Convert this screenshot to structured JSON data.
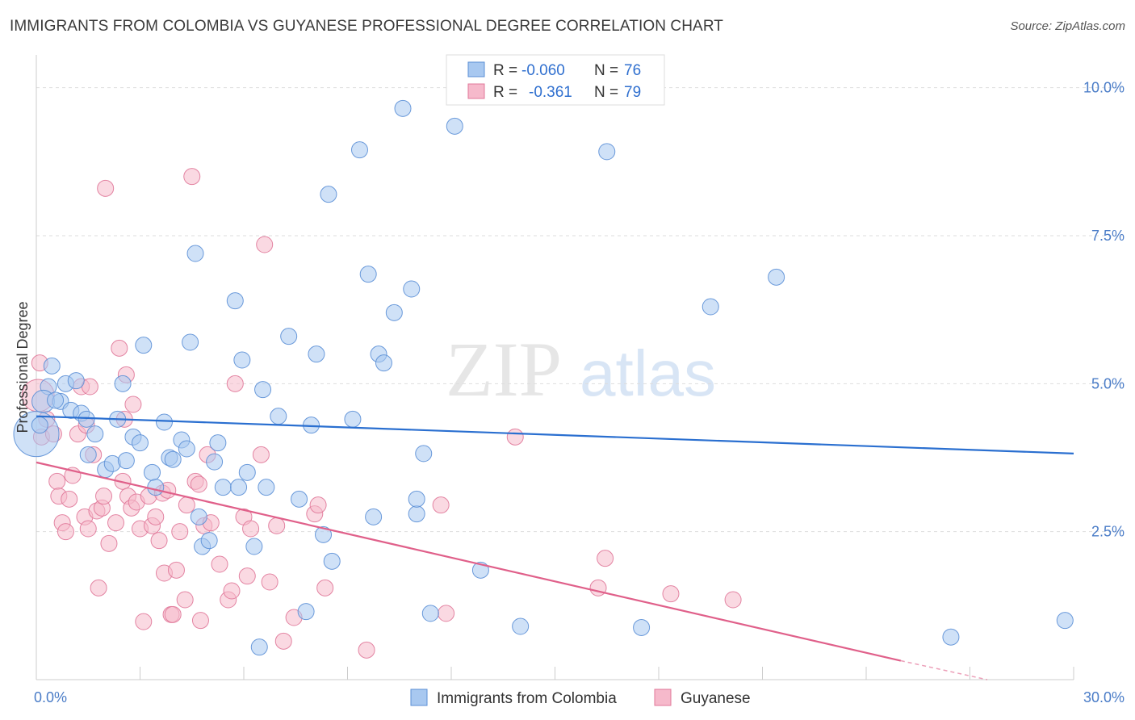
{
  "title": "IMMIGRANTS FROM COLOMBIA VS GUYANESE PROFESSIONAL DEGREE CORRELATION CHART",
  "source": "Source: ZipAtlas.com",
  "watermark": {
    "zip": "ZIP",
    "atlas": "atlas"
  },
  "colors": {
    "blue_fill": "#a8c8f0",
    "blue_stroke": "#5b8fd6",
    "blue_line": "#2a6fd0",
    "pink_fill": "#f6b9cb",
    "pink_stroke": "#e07899",
    "pink_line": "#e0608a",
    "tick_text": "#4a7cc7",
    "grid": "#dddddd"
  },
  "legend_top": {
    "row1": {
      "r_label": "R = ",
      "r_value": "-0.060",
      "n_label": "N = ",
      "n_value": "76"
    },
    "row2": {
      "r_label": "R = ",
      "r_value": "-0.361",
      "n_label": "N = ",
      "n_value": "79"
    }
  },
  "chart_data": {
    "type": "scatter",
    "title": "IMMIGRANTS FROM COLOMBIA VS GUYANESE PROFESSIONAL DEGREE CORRELATION CHART",
    "xlabel": "",
    "ylabel": "Professional Degree",
    "xlim": [
      0,
      30
    ],
    "ylim": [
      0,
      10.5
    ],
    "x_tick_labels": [
      {
        "value": 0,
        "label": "0.0%"
      },
      {
        "value": 30,
        "label": "30.0%"
      }
    ],
    "y_tick_labels": [
      {
        "value": 2.5,
        "label": "2.5%"
      },
      {
        "value": 5.0,
        "label": "5.0%"
      },
      {
        "value": 7.5,
        "label": "7.5%"
      },
      {
        "value": 10.0,
        "label": "10.0%"
      }
    ],
    "grid": "horizontal dashed",
    "legend_position": "bottom-center",
    "series": [
      {
        "name": "Immigrants from Colombia",
        "color": "#a8c8f0",
        "R": -0.06,
        "N": 76,
        "trend": {
          "x": [
            0,
            30
          ],
          "y": [
            4.45,
            3.82
          ]
        },
        "points": [
          [
            0.0,
            4.15,
            28
          ],
          [
            0.35,
            4.95,
            10
          ],
          [
            0.45,
            5.3,
            10
          ],
          [
            0.2,
            4.7,
            14
          ],
          [
            0.7,
            4.7,
            10
          ],
          [
            0.85,
            5.0,
            10
          ],
          [
            1.0,
            4.55,
            10
          ],
          [
            1.15,
            5.05,
            10
          ],
          [
            1.3,
            4.5,
            10
          ],
          [
            1.45,
            4.4,
            10
          ],
          [
            1.7,
            4.15,
            10
          ],
          [
            1.5,
            3.8,
            10
          ],
          [
            2.0,
            3.55,
            10
          ],
          [
            2.2,
            3.65,
            10
          ],
          [
            2.35,
            4.4,
            10
          ],
          [
            2.5,
            5.0,
            10
          ],
          [
            2.6,
            3.7,
            10
          ],
          [
            2.8,
            4.1,
            10
          ],
          [
            3.0,
            4.0,
            10
          ],
          [
            3.1,
            5.65,
            10
          ],
          [
            3.35,
            3.5,
            10
          ],
          [
            3.45,
            3.25,
            10
          ],
          [
            3.7,
            4.35,
            10
          ],
          [
            3.85,
            3.75,
            10
          ],
          [
            3.95,
            3.72,
            10
          ],
          [
            4.2,
            4.05,
            10
          ],
          [
            4.35,
            3.9,
            10
          ],
          [
            4.45,
            5.7,
            10
          ],
          [
            4.6,
            7.2,
            10
          ],
          [
            4.7,
            2.75,
            10
          ],
          [
            4.8,
            2.25,
            10
          ],
          [
            5.0,
            2.35,
            10
          ],
          [
            5.15,
            3.68,
            10
          ],
          [
            5.25,
            4.0,
            10
          ],
          [
            5.4,
            3.25,
            10
          ],
          [
            5.75,
            6.4,
            10
          ],
          [
            5.85,
            3.25,
            10
          ],
          [
            5.95,
            5.4,
            10
          ],
          [
            6.1,
            3.5,
            10
          ],
          [
            6.3,
            2.25,
            10
          ],
          [
            6.45,
            0.55,
            10
          ],
          [
            6.55,
            4.9,
            10
          ],
          [
            6.65,
            3.25,
            10
          ],
          [
            7.0,
            4.45,
            10
          ],
          [
            7.3,
            5.8,
            10
          ],
          [
            7.6,
            3.05,
            10
          ],
          [
            7.8,
            1.15,
            10
          ],
          [
            7.95,
            4.3,
            10
          ],
          [
            8.1,
            5.5,
            10
          ],
          [
            8.3,
            2.45,
            10
          ],
          [
            8.45,
            8.2,
            10
          ],
          [
            8.55,
            2.0,
            10
          ],
          [
            9.15,
            4.4,
            10
          ],
          [
            9.35,
            8.95,
            10
          ],
          [
            9.6,
            6.85,
            10
          ],
          [
            9.75,
            2.75,
            10
          ],
          [
            9.9,
            5.5,
            10
          ],
          [
            10.05,
            5.35,
            10
          ],
          [
            10.35,
            6.2,
            10
          ],
          [
            10.6,
            9.65,
            10
          ],
          [
            10.85,
            6.6,
            10
          ],
          [
            11.0,
            2.8,
            10
          ],
          [
            11.0,
            3.05,
            10
          ],
          [
            11.2,
            3.82,
            10
          ],
          [
            11.4,
            1.12,
            10
          ],
          [
            12.1,
            9.35,
            10
          ],
          [
            12.85,
            1.85,
            10
          ],
          [
            14.0,
            0.9,
            10
          ],
          [
            16.5,
            8.92,
            10
          ],
          [
            17.5,
            0.88,
            10
          ],
          [
            19.5,
            6.3,
            10
          ],
          [
            21.4,
            6.8,
            10
          ],
          [
            26.45,
            0.72,
            10
          ],
          [
            29.75,
            1.0,
            10
          ],
          [
            0.1,
            4.3,
            10
          ],
          [
            0.55,
            4.72,
            10
          ]
        ]
      },
      {
        "name": "Guyanese",
        "color": "#f6b9cb",
        "R": -0.361,
        "N": 79,
        "trend": {
          "x": [
            0,
            25
          ],
          "y": [
            3.67,
            0.32
          ]
        },
        "trend_dashed": {
          "x": [
            25,
            27.5
          ],
          "y": [
            0.32,
            0.0
          ]
        },
        "points": [
          [
            0.05,
            4.8,
            20
          ],
          [
            0.1,
            5.35,
            10
          ],
          [
            0.15,
            4.1,
            10
          ],
          [
            0.3,
            4.4,
            10
          ],
          [
            0.5,
            4.15,
            10
          ],
          [
            0.6,
            3.35,
            10
          ],
          [
            0.65,
            3.1,
            10
          ],
          [
            0.75,
            2.65,
            10
          ],
          [
            0.85,
            2.5,
            10
          ],
          [
            0.95,
            3.05,
            10
          ],
          [
            1.05,
            3.45,
            10
          ],
          [
            1.2,
            4.15,
            10
          ],
          [
            1.3,
            4.95,
            10
          ],
          [
            1.4,
            2.75,
            10
          ],
          [
            1.45,
            4.3,
            10
          ],
          [
            1.5,
            2.55,
            10
          ],
          [
            1.55,
            4.95,
            10
          ],
          [
            1.65,
            3.8,
            10
          ],
          [
            1.75,
            2.85,
            10
          ],
          [
            1.8,
            1.55,
            10
          ],
          [
            1.9,
            2.9,
            10
          ],
          [
            1.95,
            3.1,
            10
          ],
          [
            2.0,
            8.3,
            10
          ],
          [
            2.1,
            2.3,
            10
          ],
          [
            2.3,
            2.65,
            10
          ],
          [
            2.4,
            5.6,
            10
          ],
          [
            2.5,
            3.35,
            10
          ],
          [
            2.55,
            4.4,
            10
          ],
          [
            2.6,
            5.15,
            10
          ],
          [
            2.65,
            3.1,
            10
          ],
          [
            2.75,
            2.9,
            10
          ],
          [
            2.8,
            4.65,
            10
          ],
          [
            2.9,
            3.0,
            10
          ],
          [
            3.0,
            2.55,
            10
          ],
          [
            3.1,
            0.98,
            10
          ],
          [
            3.25,
            3.1,
            10
          ],
          [
            3.35,
            2.6,
            10
          ],
          [
            3.45,
            2.75,
            10
          ],
          [
            3.55,
            2.35,
            10
          ],
          [
            3.65,
            3.15,
            10
          ],
          [
            3.7,
            1.8,
            10
          ],
          [
            3.8,
            3.2,
            10
          ],
          [
            3.9,
            1.1,
            10
          ],
          [
            4.05,
            1.85,
            10
          ],
          [
            4.15,
            2.5,
            10
          ],
          [
            4.3,
            1.35,
            10
          ],
          [
            4.35,
            2.95,
            10
          ],
          [
            4.5,
            8.5,
            10
          ],
          [
            4.6,
            3.35,
            10
          ],
          [
            4.7,
            3.3,
            10
          ],
          [
            4.75,
            1.0,
            10
          ],
          [
            4.85,
            2.6,
            10
          ],
          [
            4.95,
            3.8,
            10
          ],
          [
            5.05,
            2.65,
            10
          ],
          [
            5.3,
            1.95,
            10
          ],
          [
            5.55,
            1.35,
            10
          ],
          [
            5.65,
            1.5,
            10
          ],
          [
            5.75,
            5.0,
            10
          ],
          [
            6.0,
            2.75,
            10
          ],
          [
            6.1,
            1.75,
            10
          ],
          [
            6.2,
            2.55,
            10
          ],
          [
            6.5,
            3.8,
            10
          ],
          [
            6.6,
            7.35,
            10
          ],
          [
            6.75,
            1.65,
            10
          ],
          [
            6.95,
            2.6,
            10
          ],
          [
            7.15,
            0.65,
            10
          ],
          [
            7.45,
            1.05,
            10
          ],
          [
            8.05,
            2.8,
            10
          ],
          [
            8.15,
            2.95,
            10
          ],
          [
            8.35,
            1.55,
            10
          ],
          [
            9.55,
            0.5,
            10
          ],
          [
            11.7,
            2.95,
            10
          ],
          [
            11.85,
            1.12,
            10
          ],
          [
            13.85,
            4.1,
            10
          ],
          [
            16.25,
            1.55,
            10
          ],
          [
            16.45,
            2.05,
            10
          ],
          [
            18.35,
            1.45,
            10
          ],
          [
            20.15,
            1.35,
            10
          ],
          [
            3.95,
            1.1,
            10
          ]
        ]
      }
    ]
  }
}
